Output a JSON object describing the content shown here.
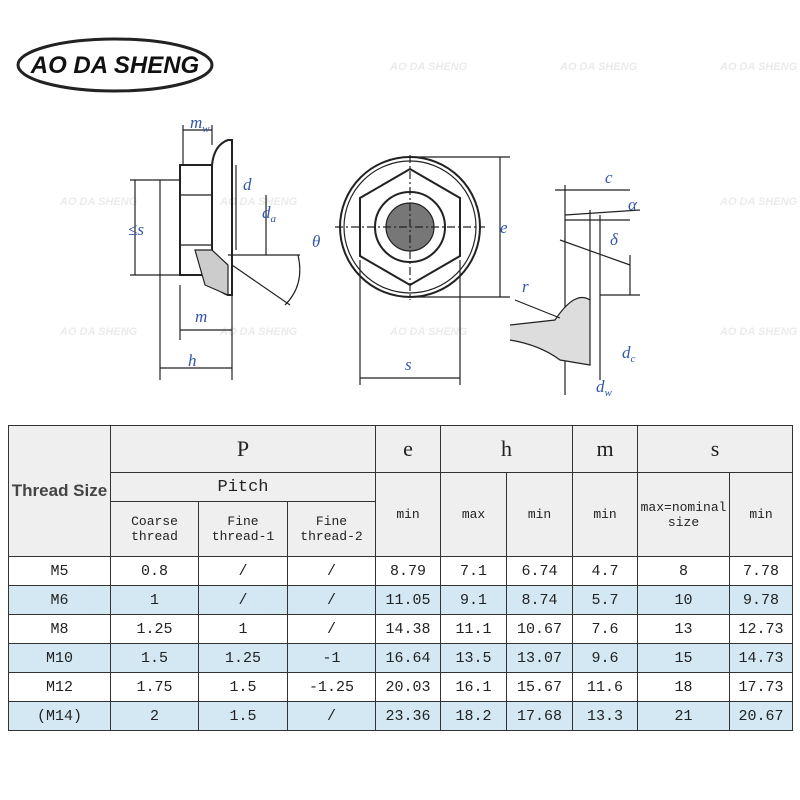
{
  "logo": "AO DA SHENG",
  "watermark": "AO DA SHENG",
  "diagram": {
    "labels": [
      {
        "text": "m",
        "sub": "w"
      },
      {
        "text": "d"
      },
      {
        "text": "d",
        "sub": "a"
      },
      {
        "text": "≤s"
      },
      {
        "text": "θ"
      },
      {
        "text": "m"
      },
      {
        "text": "h"
      },
      {
        "text": "e"
      },
      {
        "text": "s"
      },
      {
        "text": "c"
      },
      {
        "text": "α"
      },
      {
        "text": "δ"
      },
      {
        "text": "r"
      },
      {
        "text": "d",
        "sub": "c"
      },
      {
        "text": "d",
        "sub": "w"
      }
    ]
  },
  "table": {
    "header": {
      "thread_size": "Thread Size",
      "groups": [
        "P",
        "e",
        "h",
        "m",
        "s"
      ],
      "pitch": "Pitch",
      "sub": [
        "Coarse thread",
        "Fine thread-1",
        "Fine thread-2",
        "min",
        "max",
        "min",
        "min",
        "max=nominal size",
        "min"
      ]
    },
    "rows": [
      [
        "M5",
        "0.8",
        "/",
        "/",
        "8.79",
        "7.1",
        "6.74",
        "4.7",
        "8",
        "7.78"
      ],
      [
        "M6",
        "1",
        "/",
        "/",
        "11.05",
        "9.1",
        "8.74",
        "5.7",
        "10",
        "9.78"
      ],
      [
        "M8",
        "1.25",
        "1",
        "/",
        "14.38",
        "11.1",
        "10.67",
        "7.6",
        "13",
        "12.73"
      ],
      [
        "M10",
        "1.5",
        "1.25",
        "-1",
        "16.64",
        "13.5",
        "13.07",
        "9.6",
        "15",
        "14.73"
      ],
      [
        "M12",
        "1.75",
        "1.5",
        "-1.25",
        "20.03",
        "16.1",
        "15.67",
        "11.6",
        "18",
        "17.73"
      ],
      [
        "(M14)",
        "2",
        "1.5",
        "/",
        "23.36",
        "18.2",
        "17.68",
        "13.3",
        "21",
        "20.67"
      ]
    ]
  }
}
